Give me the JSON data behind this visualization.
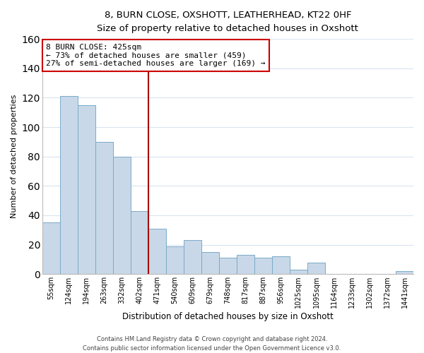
{
  "title": "8, BURN CLOSE, OXSHOTT, LEATHERHEAD, KT22 0HF",
  "subtitle": "Size of property relative to detached houses in Oxshott",
  "xlabel": "Distribution of detached houses by size in Oxshott",
  "ylabel": "Number of detached properties",
  "bin_labels": [
    "55sqm",
    "124sqm",
    "194sqm",
    "263sqm",
    "332sqm",
    "402sqm",
    "471sqm",
    "540sqm",
    "609sqm",
    "679sqm",
    "748sqm",
    "817sqm",
    "887sqm",
    "956sqm",
    "1025sqm",
    "1095sqm",
    "1164sqm",
    "1233sqm",
    "1302sqm",
    "1372sqm",
    "1441sqm"
  ],
  "bar_heights": [
    35,
    121,
    115,
    90,
    80,
    43,
    31,
    19,
    23,
    15,
    11,
    13,
    11,
    12,
    3,
    8,
    0,
    0,
    0,
    0,
    2
  ],
  "bar_color": "#c8d8e8",
  "bar_edge_color": "#7aaac8",
  "vline_x_index": 5.5,
  "vline_color": "#aa0000",
  "annotation_line1": "8 BURN CLOSE: 425sqm",
  "annotation_line2": "← 73% of detached houses are smaller (459)",
  "annotation_line3": "27% of semi-detached houses are larger (169) →",
  "annotation_box_color": "#ffffff",
  "annotation_border_color": "#cc0000",
  "ylim": [
    0,
    160
  ],
  "yticks": [
    0,
    20,
    40,
    60,
    80,
    100,
    120,
    140,
    160
  ],
  "grid_color": "#d8e4f0",
  "footer_text": "Contains HM Land Registry data © Crown copyright and database right 2024.\nContains public sector information licensed under the Open Government Licence v3.0.",
  "background_color": "#ffffff",
  "figsize": [
    6.0,
    5.0
  ],
  "dpi": 100
}
